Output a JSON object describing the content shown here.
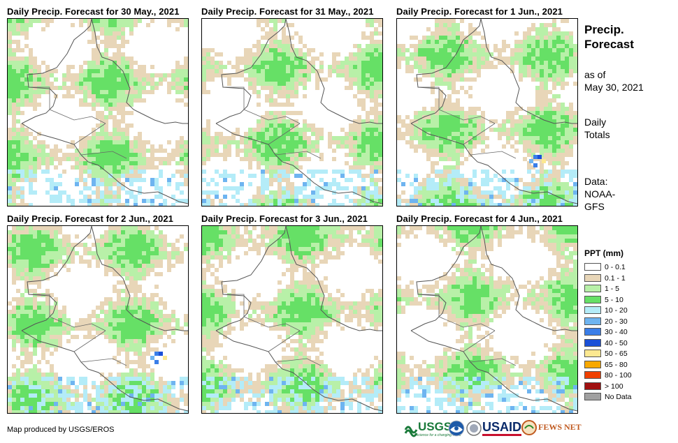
{
  "panels": [
    {
      "title": "Daily Precip. Forecast for 30 May., 2021"
    },
    {
      "title": "Daily Precip. Forecast for 31 May., 2021"
    },
    {
      "title": "Daily Precip. Forecast for 1 Jun., 2021"
    },
    {
      "title": "Daily Precip. Forecast for 2 Jun., 2021"
    },
    {
      "title": "Daily Precip. Forecast for 3 Jun., 2021"
    },
    {
      "title": "Daily Precip. Forecast for 4 Jun., 2021"
    }
  ],
  "sidebar": {
    "title_line1": "Precip.",
    "title_line2": "Forecast",
    "asof_line1": "as of",
    "asof_line2": "May 30, 2021",
    "totals_line1": "Daily",
    "totals_line2": "Totals",
    "source_line1": "Data:",
    "source_line2": "NOAA-",
    "source_line3": "GFS"
  },
  "legend": {
    "title": "PPT (mm)",
    "items": [
      {
        "label": "0 - 0.1",
        "color": "#ffffff"
      },
      {
        "label": "0.1 - 1",
        "color": "#e8d6b8"
      },
      {
        "label": "1 - 5",
        "color": "#b8f0a8"
      },
      {
        "label": "5 - 10",
        "color": "#66e066"
      },
      {
        "label": "10 - 20",
        "color": "#b4ecf8"
      },
      {
        "label": "20 - 30",
        "color": "#6eb4f0"
      },
      {
        "label": "30 - 40",
        "color": "#3a7ee8"
      },
      {
        "label": "40 - 50",
        "color": "#1a50d8"
      },
      {
        "label": "50 - 65",
        "color": "#fce890"
      },
      {
        "label": "65 - 80",
        "color": "#f8a800"
      },
      {
        "label": "80 - 100",
        "color": "#f04000"
      },
      {
        "label": "> 100",
        "color": "#a01010"
      },
      {
        "label": "No Data",
        "color": "#a0a0a0"
      }
    ]
  },
  "credit": "Map produced by USGS/EROS",
  "logos": {
    "usgs": "USGS",
    "usgs_tagline": "science for a changing world",
    "usaid": "USAID",
    "fewsnet": "FEWS NET"
  }
}
